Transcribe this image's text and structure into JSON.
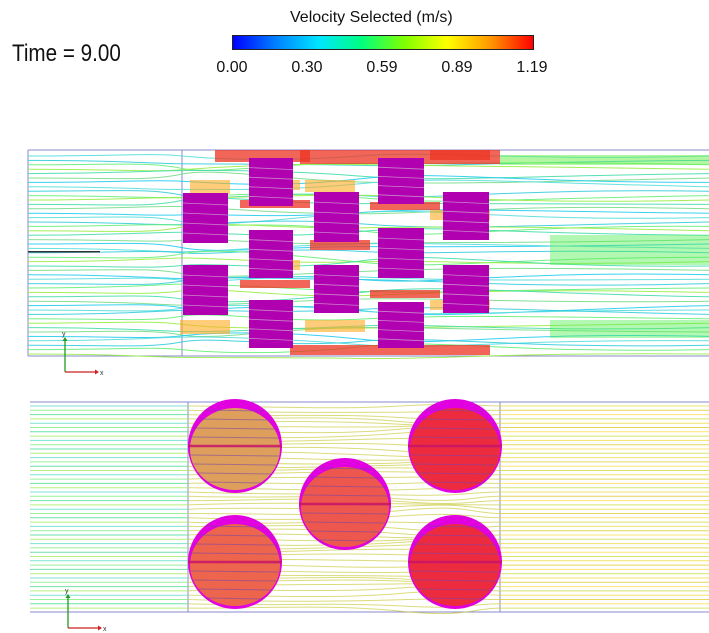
{
  "time_label": "Time = 9.00",
  "legend": {
    "title": "Velocity Selected (m/s)",
    "ticks": [
      "0.00",
      "0.30",
      "0.59",
      "0.89",
      "1.19"
    ],
    "colormap": [
      "#0000ff",
      "#0080ff",
      "#00e5ff",
      "#00ff80",
      "#80ff00",
      "#ffff00",
      "#ff9900",
      "#ff0000"
    ]
  },
  "panels": [
    {
      "name": "square-obstacle-flow",
      "obstacle_shape": "square",
      "obstacle_color": "#b000b0",
      "axis_labels": {
        "x": "x",
        "y": "y"
      }
    },
    {
      "name": "circular-obstacle-flow",
      "obstacle_shape": "circle",
      "obstacle_color": "#e000e0",
      "axis_labels": {
        "x": "x",
        "y": "y"
      }
    }
  ]
}
